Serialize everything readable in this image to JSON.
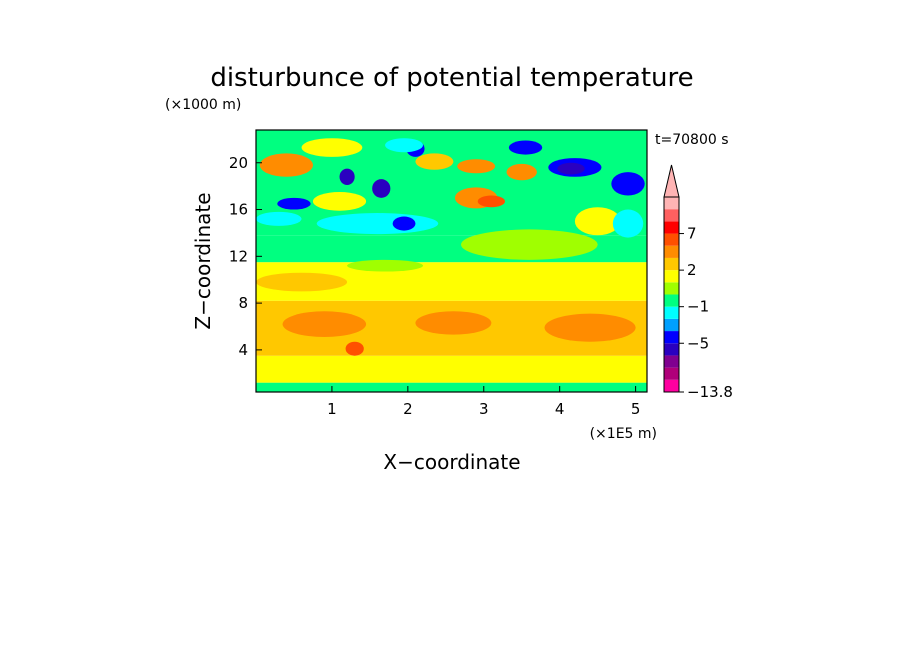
{
  "chart_data": {
    "type": "heatmap",
    "title": "disturbunce of potential temperature",
    "time_label": "t=70800 s",
    "xlabel": "X−coordinate",
    "ylabel": "Z−coordinate",
    "x_unit": "(×1E5 m)",
    "y_unit": "(×1000 m)",
    "xlim": [
      0,
      5.15
    ],
    "ylim": [
      0.4,
      22.8
    ],
    "x_ticks": [
      1,
      2,
      3,
      4,
      5
    ],
    "y_ticks": [
      4,
      8,
      12,
      16,
      20
    ],
    "x_tick_labels": [
      "1",
      "2",
      "3",
      "4",
      "5"
    ],
    "y_tick_labels": [
      "4",
      "8",
      "12",
      "16",
      "20"
    ],
    "colorbar": {
      "colors": [
        "#ff00a0",
        "#b0007a",
        "#800090",
        "#2a00c0",
        "#0000ff",
        "#00a0ff",
        "#00ffff",
        "#00ff80",
        "#a0ff00",
        "#ffff00",
        "#ffc800",
        "#ff8c00",
        "#ff5000",
        "#ff0000",
        "#ff6060",
        "#ffb4b4"
      ],
      "tick_labels": [
        "−13.8",
        "−5",
        "−1",
        "2",
        "7"
      ],
      "tick_after_boundary": [
        0,
        4,
        7,
        10,
        13
      ]
    },
    "bands": [
      {
        "zmin": 0.4,
        "zmax": 1.2,
        "level": 7
      },
      {
        "zmin": 1.2,
        "zmax": 3.5,
        "level": 9
      },
      {
        "zmin": 3.5,
        "zmax": 8.2,
        "level": 10
      },
      {
        "zmin": 8.2,
        "zmax": 11.5,
        "level": 9
      },
      {
        "zmin": 11.5,
        "zmax": 13.8,
        "level": 7
      },
      {
        "zmin": 13.8,
        "zmax": 22.8,
        "level": 7
      }
    ],
    "features": [
      {
        "x": 0.9,
        "z": 6.2,
        "rx": 0.55,
        "rz": 1.1,
        "level": 11
      },
      {
        "x": 1.3,
        "z": 4.1,
        "rx": 0.12,
        "rz": 0.6,
        "level": 12
      },
      {
        "x": 2.6,
        "z": 6.3,
        "rx": 0.5,
        "rz": 1.0,
        "level": 11
      },
      {
        "x": 4.4,
        "z": 5.9,
        "rx": 0.6,
        "rz": 1.2,
        "level": 11
      },
      {
        "x": 0.6,
        "z": 9.8,
        "rx": 0.6,
        "rz": 0.8,
        "level": 10
      },
      {
        "x": 1.7,
        "z": 11.2,
        "rx": 0.5,
        "rz": 0.5,
        "level": 8
      },
      {
        "x": 3.6,
        "z": 13.0,
        "rx": 0.9,
        "rz": 1.3,
        "level": 8
      },
      {
        "x": 1.6,
        "z": 14.8,
        "rx": 0.8,
        "rz": 0.9,
        "level": 6
      },
      {
        "x": 0.3,
        "z": 15.2,
        "rx": 0.3,
        "rz": 0.6,
        "level": 6
      },
      {
        "x": 1.1,
        "z": 16.7,
        "rx": 0.35,
        "rz": 0.8,
        "level": 9
      },
      {
        "x": 0.4,
        "z": 19.8,
        "rx": 0.35,
        "rz": 1.0,
        "level": 11
      },
      {
        "x": 1.0,
        "z": 21.3,
        "rx": 0.4,
        "rz": 0.8,
        "level": 9
      },
      {
        "x": 0.5,
        "z": 16.5,
        "rx": 0.22,
        "rz": 0.5,
        "level": 4
      },
      {
        "x": 1.2,
        "z": 18.8,
        "rx": 0.1,
        "rz": 0.7,
        "level": 3
      },
      {
        "x": 1.65,
        "z": 17.8,
        "rx": 0.12,
        "rz": 0.8,
        "level": 3
      },
      {
        "x": 2.1,
        "z": 21.2,
        "rx": 0.12,
        "rz": 0.7,
        "level": 4
      },
      {
        "x": 2.35,
        "z": 20.1,
        "rx": 0.25,
        "rz": 0.7,
        "level": 10
      },
      {
        "x": 2.9,
        "z": 17.0,
        "rx": 0.28,
        "rz": 0.9,
        "level": 11
      },
      {
        "x": 3.1,
        "z": 16.7,
        "rx": 0.18,
        "rz": 0.5,
        "level": 12
      },
      {
        "x": 2.9,
        "z": 19.7,
        "rx": 0.25,
        "rz": 0.6,
        "level": 11
      },
      {
        "x": 3.5,
        "z": 19.2,
        "rx": 0.2,
        "rz": 0.7,
        "level": 11
      },
      {
        "x": 3.55,
        "z": 21.3,
        "rx": 0.22,
        "rz": 0.6,
        "level": 4
      },
      {
        "x": 4.2,
        "z": 19.6,
        "rx": 0.35,
        "rz": 0.8,
        "level": 4
      },
      {
        "x": 4.15,
        "z": 19.5,
        "rx": 0.18,
        "rz": 0.5,
        "level": 3
      },
      {
        "x": 4.9,
        "z": 18.2,
        "rx": 0.22,
        "rz": 1.0,
        "level": 4
      },
      {
        "x": 4.5,
        "z": 15.0,
        "rx": 0.3,
        "rz": 1.2,
        "level": 9
      },
      {
        "x": 4.9,
        "z": 14.8,
        "rx": 0.2,
        "rz": 1.2,
        "level": 6
      },
      {
        "x": 1.95,
        "z": 14.8,
        "rx": 0.15,
        "rz": 0.6,
        "level": 4
      },
      {
        "x": 1.95,
        "z": 21.5,
        "rx": 0.25,
        "rz": 0.6,
        "level": 6
      }
    ]
  }
}
